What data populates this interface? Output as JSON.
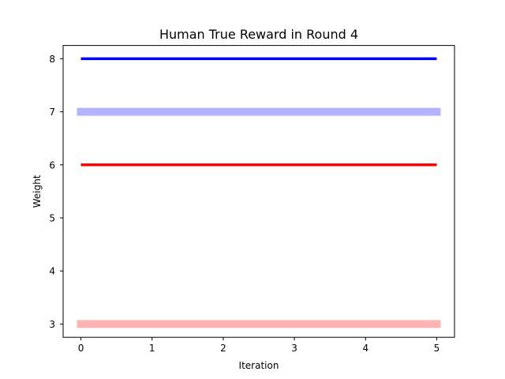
{
  "chart_data": {
    "type": "line",
    "title": "Human True Reward in Round 4",
    "xlabel": "Iteration",
    "ylabel": "Weight",
    "x": [
      0,
      1,
      2,
      3,
      4,
      5
    ],
    "xlim": [
      -0.25,
      5.25
    ],
    "ylim": [
      2.75,
      8.25
    ],
    "xticks": [
      0,
      1,
      2,
      3,
      4,
      5
    ],
    "yticks": [
      3,
      4,
      5,
      6,
      7,
      8
    ],
    "grid": false,
    "series": [
      {
        "values": [
          7,
          7,
          7,
          7,
          7,
          7
        ],
        "color": "#b3b3ff",
        "width": "thick"
      },
      {
        "values": [
          3,
          3,
          3,
          3,
          3,
          3
        ],
        "color": "#ffb3b3",
        "width": "thick"
      },
      {
        "values": [
          8,
          8,
          8,
          8,
          8,
          8
        ],
        "color": "#0000ff",
        "width": "thin"
      },
      {
        "values": [
          6,
          6,
          6,
          6,
          6,
          6
        ],
        "color": "#ff0000",
        "width": "thin"
      }
    ]
  }
}
